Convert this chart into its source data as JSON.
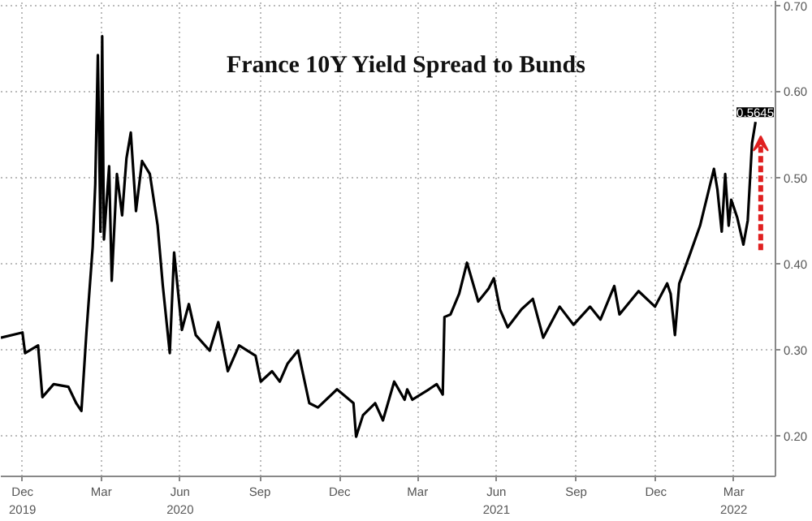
{
  "chart_data": {
    "type": "line",
    "title": "France 10Y Yield Spread to Bunds",
    "x": [
      "2019-11-21",
      "2019-12-16",
      "2019-12-19",
      "2020-01-03",
      "2020-01-08",
      "2020-01-21",
      "2020-02-07",
      "2020-02-16",
      "2020-02-22",
      "2020-02-28",
      "2020-03-06",
      "2020-03-09",
      "2020-03-12",
      "2020-03-15",
      "2020-03-17",
      "2020-03-19",
      "2020-03-25",
      "2020-03-28",
      "2020-04-03",
      "2020-04-09",
      "2020-04-14",
      "2020-04-19",
      "2020-04-25",
      "2020-05-02",
      "2020-05-11",
      "2020-05-20",
      "2020-05-26",
      "2020-06-03",
      "2020-06-08",
      "2020-06-17",
      "2020-06-25",
      "2020-07-03",
      "2020-07-19",
      "2020-07-29",
      "2020-08-09",
      "2020-08-22",
      "2020-09-10",
      "2020-09-16",
      "2020-09-29",
      "2020-10-08",
      "2020-10-17",
      "2020-10-29",
      "2020-11-11",
      "2020-11-21",
      "2020-12-13",
      "2021-01-01",
      "2021-01-04",
      "2021-01-12",
      "2021-01-26",
      "2021-02-04",
      "2021-02-17",
      "2021-03-01",
      "2021-03-04",
      "2021-03-10",
      "2021-03-29",
      "2021-04-07",
      "2021-04-14",
      "2021-04-16",
      "2021-04-23",
      "2021-05-03",
      "2021-05-12",
      "2021-05-25",
      "2021-06-06",
      "2021-06-12",
      "2021-06-19",
      "2021-06-28",
      "2021-07-14",
      "2021-07-27",
      "2021-08-08",
      "2021-08-27",
      "2021-09-12",
      "2021-10-01",
      "2021-10-13",
      "2021-10-29",
      "2021-11-04",
      "2021-11-26",
      "2021-12-15",
      "2021-12-29",
      "2022-01-02",
      "2022-01-07",
      "2022-01-12",
      "2022-01-24",
      "2022-02-05",
      "2022-02-13",
      "2022-02-21",
      "2022-02-25",
      "2022-03-02",
      "2022-03-06",
      "2022-03-10",
      "2022-03-13",
      "2022-03-20",
      "2022-03-27",
      "2022-04-01",
      "2022-04-06",
      "2022-04-10"
    ],
    "series": [
      {
        "color": "#000000",
        "values": [
          0.314,
          0.32,
          0.296,
          0.305,
          0.245,
          0.26,
          0.257,
          0.238,
          0.229,
          0.323,
          0.419,
          0.492,
          0.642,
          0.437,
          0.664,
          0.428,
          0.513,
          0.38,
          0.504,
          0.456,
          0.522,
          0.552,
          0.461,
          0.519,
          0.504,
          0.444,
          0.374,
          0.296,
          0.413,
          0.323,
          0.353,
          0.317,
          0.299,
          0.332,
          0.275,
          0.305,
          0.293,
          0.263,
          0.275,
          0.263,
          0.284,
          0.299,
          0.238,
          0.233,
          0.254,
          0.238,
          0.199,
          0.224,
          0.238,
          0.218,
          0.263,
          0.242,
          0.254,
          0.242,
          0.254,
          0.26,
          0.248,
          0.338,
          0.341,
          0.365,
          0.401,
          0.356,
          0.371,
          0.383,
          0.347,
          0.326,
          0.347,
          0.359,
          0.314,
          0.35,
          0.329,
          0.35,
          0.335,
          0.374,
          0.341,
          0.368,
          0.35,
          0.377,
          0.365,
          0.317,
          0.377,
          0.41,
          0.444,
          0.477,
          0.51,
          0.486,
          0.437,
          0.504,
          0.444,
          0.474,
          0.453,
          0.422,
          0.45,
          0.54,
          0.5645
        ]
      }
    ],
    "xlim": [
      "2019-11-21",
      "2022-05-03"
    ],
    "xticks": [
      {
        "value": "2019-12-16",
        "label": "Dec\n2019"
      },
      {
        "value": "2020-03-16",
        "label": "Mar"
      },
      {
        "value": "2020-06-15",
        "label": "Jun\n2020"
      },
      {
        "value": "2020-09-15",
        "label": "Sep"
      },
      {
        "value": "2020-12-16",
        "label": "Dec"
      },
      {
        "value": "2021-03-16",
        "label": "Mar"
      },
      {
        "value": "2021-06-15",
        "label": "Jun\n2021"
      },
      {
        "value": "2021-09-15",
        "label": "Sep"
      },
      {
        "value": "2021-12-16",
        "label": "Dec"
      },
      {
        "value": "2022-03-16",
        "label": "Mar\n2022"
      }
    ],
    "ylim": [
      0.153,
      0.705
    ],
    "yticks": [
      {
        "value": 0.2,
        "label": "0.20"
      },
      {
        "value": 0.3,
        "label": "0.30"
      },
      {
        "value": 0.4,
        "label": "0.40"
      },
      {
        "value": 0.5,
        "label": "0.50"
      },
      {
        "value": 0.6,
        "label": "0.60"
      },
      {
        "value": 0.7,
        "label": "0.70"
      }
    ],
    "annotations": [
      {
        "text": "0.5645",
        "x": "2022-04-10",
        "y": 0.5645
      }
    ],
    "grid": true,
    "line_style": "solid"
  }
}
